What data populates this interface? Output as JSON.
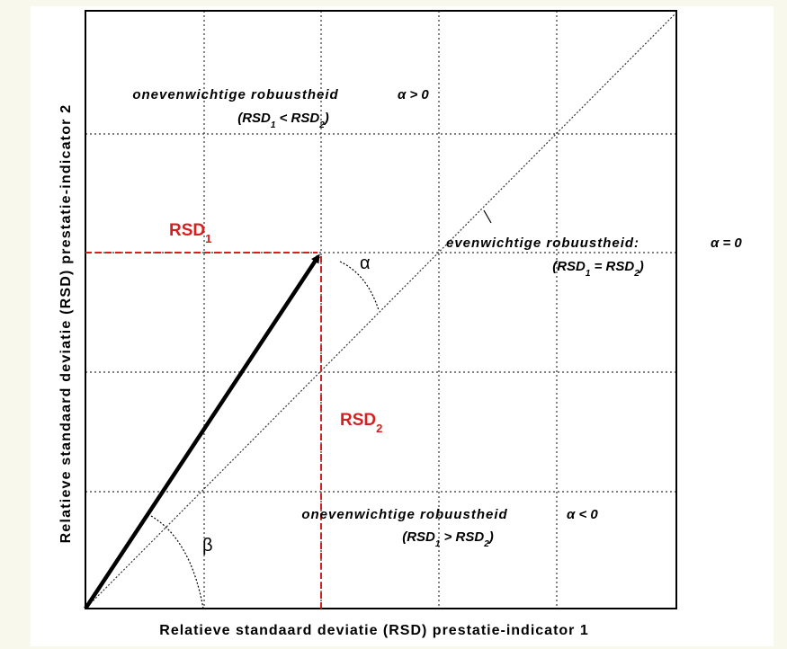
{
  "axes": {
    "x_label": "Relatieve standaard deviatie (RSD) prestatie-indicator 1",
    "y_label": "Relatieve standaard deviatie (RSD) prestatie-indicator 2"
  },
  "regions": {
    "upper": {
      "title": "onevenwichtige robuustheid",
      "condition": "α > 0",
      "relation": {
        "open": "(",
        "a": "RSD",
        "a_sub": "1",
        "op": " < ",
        "b": "RSD",
        "b_sub": "2",
        "close": ")"
      }
    },
    "diagonal": {
      "title": "evenwichtige robuustheid:",
      "condition": "α = 0",
      "relation": {
        "open": "(",
        "a": "RSD",
        "a_sub": "1",
        "op": " = ",
        "b": "RSD",
        "b_sub": "2",
        "close": ")"
      }
    },
    "lower": {
      "title": "onevenwichtige robuustheid",
      "condition": "α < 0",
      "relation": {
        "open": "(",
        "a": "RSD",
        "a_sub": "1",
        "op": " > ",
        "b": "RSD",
        "b_sub": "2",
        "close": ")"
      }
    }
  },
  "markers": {
    "rsd1": {
      "text": "RSD",
      "sub": "1"
    },
    "rsd2": {
      "text": "RSD",
      "sub": "2"
    },
    "alpha": "α",
    "beta": "β"
  },
  "colors": {
    "accent": "#d42020",
    "ink": "#000000",
    "grid": "#333333",
    "page_bg": "#f8f8ec"
  }
}
